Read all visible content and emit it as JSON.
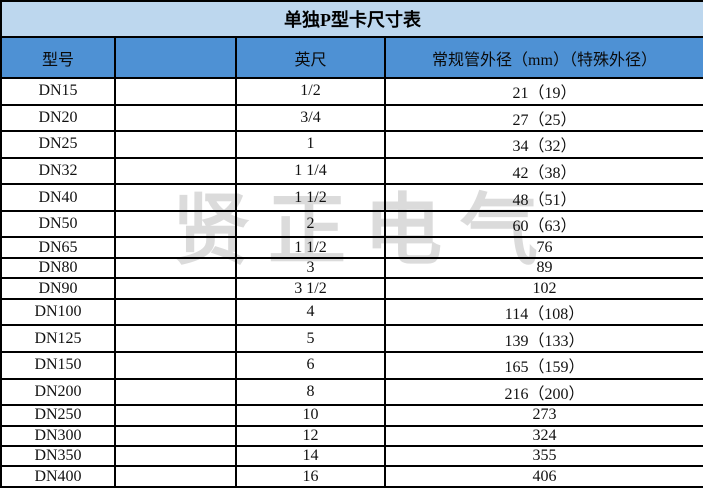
{
  "colors": {
    "title_bg": "#bdd7ee",
    "header_bg": "#4e91d4",
    "border": "#000000",
    "watermark": "#dbdbdb",
    "text": "#111111"
  },
  "watermark": {
    "text": "贤正电气"
  },
  "table": {
    "title": "单独P型卡尺寸表",
    "columns": [
      {
        "key": "model",
        "label": "型号"
      },
      {
        "key": "blank",
        "label": ""
      },
      {
        "key": "inch",
        "label": "英尺"
      },
      {
        "key": "diameter",
        "label": "常规管外径（mm）（特殊外径）"
      }
    ],
    "rows": [
      {
        "model": "DN15",
        "blank": "",
        "inch": "1/2",
        "diameter": "21（19）"
      },
      {
        "model": "DN20",
        "blank": "",
        "inch": "3/4",
        "diameter": "27（25）"
      },
      {
        "model": "DN25",
        "blank": "",
        "inch": "1",
        "diameter": "34（32）"
      },
      {
        "model": "DN32",
        "blank": "",
        "inch": "1 1/4",
        "diameter": "42（38）"
      },
      {
        "model": "DN40",
        "blank": "",
        "inch": "1 1/2",
        "diameter": "48（51）"
      },
      {
        "model": "DN50",
        "blank": "",
        "inch": "2",
        "diameter": "60（63）"
      },
      {
        "model": "DN65",
        "blank": "",
        "inch": "1 1/2",
        "diameter": "76"
      },
      {
        "model": "DN80",
        "blank": "",
        "inch": "3",
        "diameter": "89"
      },
      {
        "model": "DN90",
        "blank": "",
        "inch": "3 1/2",
        "diameter": "102"
      },
      {
        "model": "DN100",
        "blank": "",
        "inch": "4",
        "diameter": "114（108）"
      },
      {
        "model": "DN125",
        "blank": "",
        "inch": "5",
        "diameter": "139（133）"
      },
      {
        "model": "DN150",
        "blank": "",
        "inch": "6",
        "diameter": "165（159）"
      },
      {
        "model": "DN200",
        "blank": "",
        "inch": "8",
        "diameter": "216（200）"
      },
      {
        "model": "DN250",
        "blank": "",
        "inch": "10",
        "diameter": "273"
      },
      {
        "model": "DN300",
        "blank": "",
        "inch": "12",
        "diameter": "324"
      },
      {
        "model": "DN350",
        "blank": "",
        "inch": "14",
        "diameter": "355"
      },
      {
        "model": "DN400",
        "blank": "",
        "inch": "16",
        "diameter": "406"
      }
    ]
  }
}
